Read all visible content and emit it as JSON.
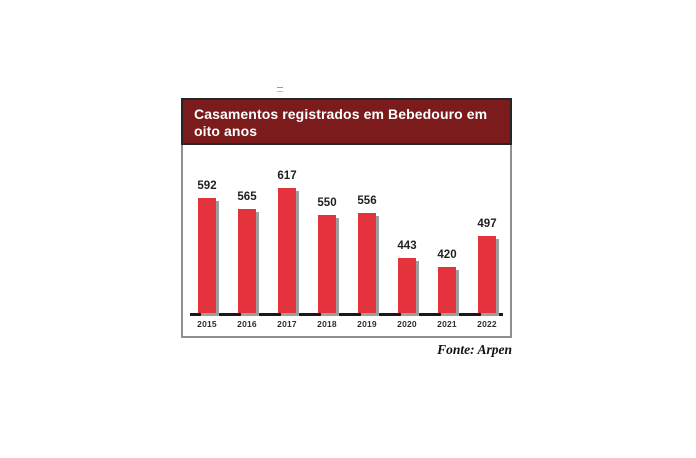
{
  "chart_data": {
    "type": "bar",
    "title": "Casamentos registrados em Bebedouro em oito anos",
    "categories": [
      "2015",
      "2016",
      "2017",
      "2018",
      "2019",
      "2020",
      "2021",
      "2022"
    ],
    "values": [
      592,
      565,
      617,
      550,
      556,
      443,
      420,
      497
    ],
    "xlabel": "",
    "ylabel": "",
    "ylim": [
      305,
      650
    ],
    "grid": false,
    "legend": false,
    "source": "Fonte: Arpen",
    "colors": {
      "bar": "#E5333E",
      "bar_shadow": "#9E9E9E",
      "header_background": "#7B1B1B",
      "header_border": "#262626",
      "box_border": "#8F8F8F",
      "axis": "#1A1A1A",
      "value_label": "#1F1F1F",
      "tick_label": "#2E2E2E",
      "title_text": "#FFFFFF"
    }
  }
}
